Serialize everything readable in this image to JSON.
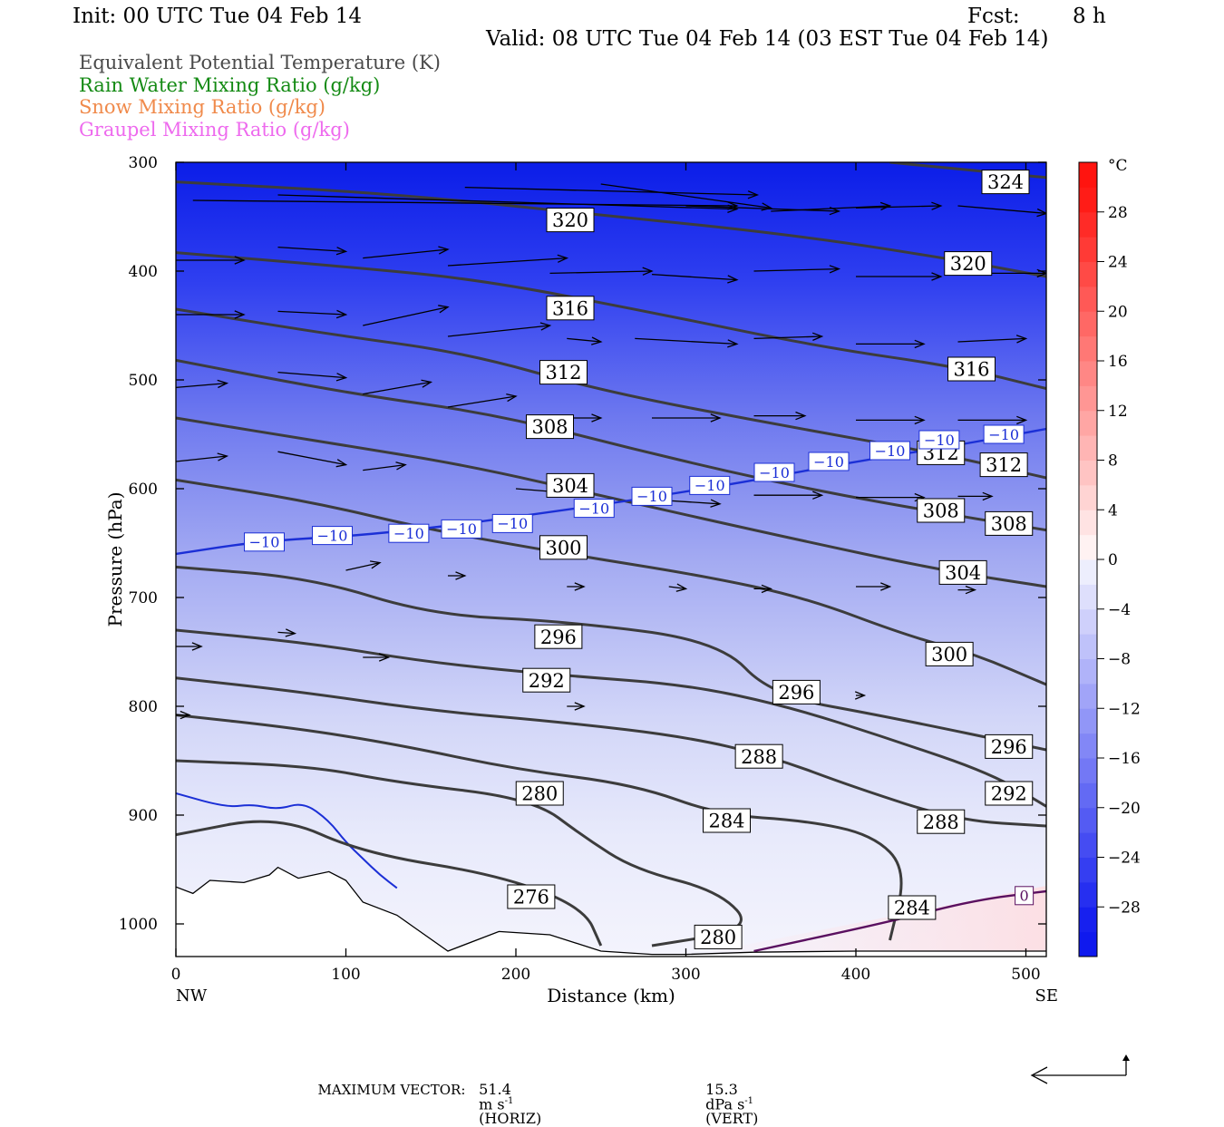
{
  "header": {
    "init": "Init: 00 UTC Tue 04 Feb 14",
    "fcst_label": "Fcst:",
    "fcst_value": "8 h",
    "valid": "Valid: 08 UTC Tue 04 Feb 14 (03 EST Tue 04 Feb 14)"
  },
  "legend": [
    {
      "label": "Equivalent Potential Temperature (K)",
      "color": "#4a4a4a"
    },
    {
      "label": "Rain Water Mixing Ratio (g/kg)",
      "color": "#138a13"
    },
    {
      "label": "Snow Mixing Ratio (g/kg)",
      "color": "#f08a4b"
    },
    {
      "label": "Graupel Mixing Ratio (g/kg)",
      "color": "#ee6aee"
    }
  ],
  "footer": {
    "label": "MAXIMUM VECTOR:",
    "horiz_value": "51.4",
    "horiz_unit": "m s",
    "horiz_exp": "-1",
    "horiz_tag": "(HORIZ)",
    "vert_value": "15.3",
    "vert_unit": "dPa s",
    "vert_exp": "-1",
    "vert_tag": "(VERT)"
  },
  "chart_data": {
    "type": "cross-section",
    "xlabel": "Distance (km)",
    "ylabel": "Pressure (hPa)",
    "xlim": [
      0,
      512
    ],
    "ylim": [
      300,
      1030
    ],
    "x_ticks": [
      0,
      100,
      200,
      300,
      400,
      500
    ],
    "y_ticks": [
      300,
      400,
      500,
      600,
      700,
      800,
      900,
      1000
    ],
    "left_end_label": "NW",
    "right_end_label": "SE",
    "colorbar": {
      "unit": "°C",
      "ticks": [
        28,
        24,
        20,
        16,
        12,
        8,
        4,
        0,
        -4,
        -8,
        -12,
        -16,
        -20,
        -24,
        -28
      ],
      "range": [
        -32,
        32
      ]
    },
    "theta_e_contours": [
      {
        "value": 324,
        "label": "324",
        "points": [
          [
            420,
            300
          ],
          [
            512,
            314
          ]
        ],
        "labels_at": [
          [
            488,
            318
          ]
        ]
      },
      {
        "value": 320,
        "label": "320",
        "points": [
          [
            0,
            318
          ],
          [
            120,
            328
          ],
          [
            250,
            348
          ],
          [
            370,
            368
          ],
          [
            460,
            390
          ],
          [
            512,
            405
          ]
        ],
        "labels_at": [
          [
            232,
            353
          ],
          [
            466,
            393
          ]
        ]
      },
      {
        "value": 316,
        "label": "316",
        "points": [
          [
            0,
            383
          ],
          [
            100,
            396
          ],
          [
            180,
            408
          ],
          [
            280,
            438
          ],
          [
            380,
            470
          ],
          [
            460,
            488
          ],
          [
            512,
            508
          ]
        ],
        "labels_at": [
          [
            232,
            434
          ],
          [
            468,
            490
          ]
        ]
      },
      {
        "value": 312,
        "label": "312",
        "points": [
          [
            0,
            435
          ],
          [
            90,
            458
          ],
          [
            170,
            475
          ],
          [
            250,
            510
          ],
          [
            350,
            540
          ],
          [
            450,
            568
          ],
          [
            512,
            590
          ]
        ],
        "labels_at": [
          [
            228,
            493
          ],
          [
            450,
            567
          ],
          [
            487,
            578
          ]
        ]
      },
      {
        "value": 308,
        "label": "308",
        "points": [
          [
            0,
            482
          ],
          [
            100,
            512
          ],
          [
            190,
            532
          ],
          [
            280,
            568
          ],
          [
            370,
            600
          ],
          [
            460,
            625
          ],
          [
            512,
            638
          ]
        ],
        "labels_at": [
          [
            220,
            543
          ],
          [
            450,
            620
          ],
          [
            490,
            632
          ]
        ]
      },
      {
        "value": 304,
        "label": "304",
        "points": [
          [
            0,
            535
          ],
          [
            90,
            558
          ],
          [
            170,
            578
          ],
          [
            260,
            610
          ],
          [
            360,
            645
          ],
          [
            450,
            675
          ],
          [
            512,
            690
          ]
        ],
        "labels_at": [
          [
            232,
            597
          ],
          [
            463,
            677
          ]
        ]
      },
      {
        "value": 300,
        "label": "300",
        "points": [
          [
            0,
            592
          ],
          [
            80,
            612
          ],
          [
            150,
            638
          ],
          [
            230,
            660
          ],
          [
            310,
            680
          ],
          [
            370,
            700
          ],
          [
            430,
            735
          ],
          [
            470,
            752
          ],
          [
            512,
            780
          ]
        ],
        "labels_at": [
          [
            228,
            654
          ],
          [
            455,
            752
          ]
        ]
      },
      {
        "value": 296,
        "label": "296",
        "points": [
          [
            0,
            672
          ],
          [
            80,
            682
          ],
          [
            150,
            716
          ],
          [
            230,
            722
          ],
          [
            320,
            740
          ],
          [
            350,
            790
          ],
          [
            420,
            810
          ],
          [
            512,
            840
          ]
        ],
        "labels_at": [
          [
            225,
            736
          ],
          [
            365,
            787
          ],
          [
            490,
            837
          ]
        ]
      },
      {
        "value": 292,
        "label": "292",
        "points": [
          [
            0,
            730
          ],
          [
            80,
            742
          ],
          [
            150,
            760
          ],
          [
            230,
            772
          ],
          [
            300,
            780
          ],
          [
            360,
            800
          ],
          [
            420,
            830
          ],
          [
            480,
            862
          ],
          [
            512,
            892
          ]
        ],
        "labels_at": [
          [
            218,
            776
          ],
          [
            490,
            880
          ]
        ]
      },
      {
        "value": 288,
        "label": "288",
        "points": [
          [
            0,
            774
          ],
          [
            70,
            786
          ],
          [
            150,
            804
          ],
          [
            230,
            815
          ],
          [
            300,
            828
          ],
          [
            350,
            846
          ],
          [
            400,
            875
          ],
          [
            460,
            905
          ],
          [
            512,
            910
          ]
        ],
        "labels_at": [
          [
            343,
            846
          ],
          [
            450,
            906
          ]
        ]
      },
      {
        "value": 284,
        "label": "284",
        "points": [
          [
            0,
            808
          ],
          [
            70,
            820
          ],
          [
            130,
            835
          ],
          [
            200,
            858
          ],
          [
            270,
            872
          ],
          [
            320,
            900
          ],
          [
            370,
            905
          ],
          [
            410,
            918
          ],
          [
            430,
            950
          ],
          [
            420,
            1015
          ]
        ],
        "labels_at": [
          [
            324,
            905
          ],
          [
            433,
            985
          ]
        ]
      },
      {
        "value": 280,
        "label": "280",
        "points": [
          [
            0,
            850
          ],
          [
            80,
            855
          ],
          [
            130,
            870
          ],
          [
            210,
            885
          ],
          [
            240,
            920
          ],
          [
            270,
            950
          ],
          [
            320,
            970
          ],
          [
            340,
            1005
          ],
          [
            280,
            1020
          ]
        ],
        "labels_at": [
          [
            214,
            880
          ],
          [
            319,
            1012
          ]
        ]
      },
      {
        "value": 276,
        "label": "276",
        "points": [
          [
            0,
            918
          ],
          [
            60,
            900
          ],
          [
            110,
            935
          ],
          [
            190,
            955
          ],
          [
            240,
            985
          ],
          [
            250,
            1020
          ]
        ],
        "labels_at": [
          [
            209,
            975
          ]
        ]
      }
    ],
    "isotherms": [
      {
        "value": -10,
        "label": "-10",
        "color": "#1b2fd6",
        "points": [
          [
            0,
            660
          ],
          [
            50,
            648
          ],
          [
            120,
            642
          ],
          [
            220,
            622
          ],
          [
            320,
            598
          ],
          [
            400,
            575
          ],
          [
            460,
            560
          ],
          [
            512,
            545
          ]
        ],
        "labels_at": [
          [
            52,
            649
          ],
          [
            92,
            643
          ],
          [
            137,
            641
          ],
          [
            168,
            637
          ],
          [
            198,
            632
          ],
          [
            246,
            618
          ],
          [
            280,
            607
          ],
          [
            314,
            597
          ],
          [
            352,
            585
          ],
          [
            384,
            575
          ],
          [
            420,
            565
          ],
          [
            449,
            555
          ],
          [
            487,
            550
          ]
        ]
      },
      {
        "value": 0,
        "label": "0",
        "color": "#5a1060",
        "points": [
          [
            340,
            1025
          ],
          [
            420,
            998
          ],
          [
            470,
            978
          ],
          [
            512,
            970
          ]
        ],
        "labels_at": [
          [
            499,
            974
          ]
        ]
      }
    ],
    "rain_contour": {
      "color": "#1b2fd6",
      "points": [
        [
          0,
          880
        ],
        [
          30,
          893
        ],
        [
          45,
          890
        ],
        [
          60,
          895
        ],
        [
          75,
          888
        ],
        [
          90,
          905
        ],
        [
          100,
          925
        ],
        [
          110,
          940
        ],
        [
          120,
          955
        ],
        [
          130,
          967
        ]
      ]
    },
    "terrain_pressure": [
      [
        0,
        966
      ],
      [
        10,
        972
      ],
      [
        20,
        960
      ],
      [
        40,
        962
      ],
      [
        55,
        955
      ],
      [
        60,
        948
      ],
      [
        72,
        958
      ],
      [
        90,
        952
      ],
      [
        100,
        960
      ],
      [
        110,
        980
      ],
      [
        130,
        992
      ],
      [
        140,
        1003
      ],
      [
        160,
        1025
      ],
      [
        190,
        1007
      ],
      [
        220,
        1010
      ],
      [
        250,
        1025
      ],
      [
        280,
        1028
      ],
      [
        300,
        1028
      ],
      [
        340,
        1026
      ],
      [
        400,
        1025
      ],
      [
        512,
        1025
      ]
    ],
    "wind_vectors": [
      [
        10,
        335,
        330,
        340
      ],
      [
        60,
        330,
        330,
        343
      ],
      [
        170,
        323,
        342,
        330
      ],
      [
        250,
        320,
        350,
        342
      ],
      [
        300,
        340,
        390,
        345
      ],
      [
        350,
        345,
        420,
        340
      ],
      [
        400,
        342,
        450,
        340
      ],
      [
        460,
        340,
        512,
        347
      ],
      [
        0,
        390,
        40,
        390
      ],
      [
        60,
        378,
        100,
        382
      ],
      [
        110,
        388,
        160,
        380
      ],
      [
        160,
        395,
        230,
        388
      ],
      [
        220,
        402,
        280,
        400
      ],
      [
        280,
        403,
        330,
        408
      ],
      [
        340,
        400,
        390,
        398
      ],
      [
        400,
        405,
        450,
        405
      ],
      [
        460,
        402,
        512,
        402
      ],
      [
        0,
        440,
        40,
        440
      ],
      [
        60,
        437,
        100,
        440
      ],
      [
        110,
        450,
        160,
        433
      ],
      [
        160,
        460,
        220,
        450
      ],
      [
        230,
        462,
        250,
        465
      ],
      [
        270,
        462,
        330,
        467
      ],
      [
        340,
        462,
        380,
        460
      ],
      [
        400,
        467,
        440,
        467
      ],
      [
        460,
        465,
        500,
        462
      ],
      [
        0,
        507,
        30,
        503
      ],
      [
        60,
        493,
        100,
        498
      ],
      [
        110,
        513,
        150,
        502
      ],
      [
        160,
        525,
        200,
        515
      ],
      [
        220,
        535,
        250,
        535
      ],
      [
        280,
        535,
        320,
        535
      ],
      [
        340,
        533,
        370,
        533
      ],
      [
        400,
        537,
        440,
        537
      ],
      [
        460,
        537,
        500,
        537
      ],
      [
        0,
        575,
        30,
        570
      ],
      [
        60,
        566,
        100,
        578
      ],
      [
        110,
        583,
        135,
        578
      ],
      [
        200,
        600,
        240,
        605
      ],
      [
        280,
        610,
        320,
        614
      ],
      [
        340,
        606,
        380,
        606
      ],
      [
        400,
        608,
        440,
        608
      ],
      [
        460,
        607,
        480,
        607
      ],
      [
        100,
        675,
        120,
        668
      ],
      [
        160,
        680,
        170,
        680
      ],
      [
        230,
        690,
        240,
        690
      ],
      [
        290,
        690,
        300,
        692
      ],
      [
        340,
        692,
        350,
        692
      ],
      [
        400,
        690,
        420,
        690
      ],
      [
        460,
        693,
        470,
        693
      ],
      [
        0,
        745,
        15,
        745
      ],
      [
        60,
        732,
        70,
        733
      ],
      [
        110,
        755,
        125,
        755
      ],
      [
        230,
        800,
        240,
        800
      ],
      [
        400,
        790,
        405,
        790
      ],
      [
        0,
        808,
        8,
        808
      ]
    ],
    "temperature_field": {
      "notes": "Background colour fill: about -30 C (blue) near 300 hPa warming to about 0 C near the surface in the east, with slightly warmer (0 to +4 C) air in the lowest levels of the southeast."
    }
  }
}
